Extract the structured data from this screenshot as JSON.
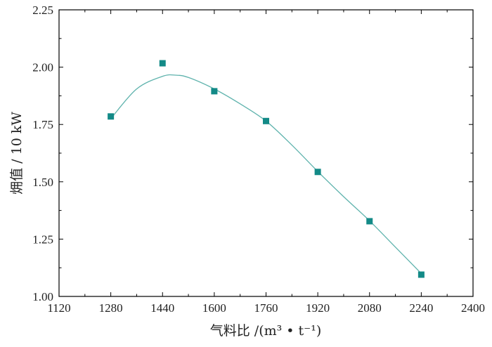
{
  "chart_data": {
    "type": "scatter",
    "xlabel": "气料比 /(m³ • t⁻¹)",
    "ylabel": "㶲值 / 10 kW",
    "xlim": [
      1120,
      2400
    ],
    "ylim": [
      1.0,
      2.25
    ],
    "xticks": [
      "1120",
      "1280",
      "1440",
      "1600",
      "1760",
      "1920",
      "2080",
      "2240",
      "2400"
    ],
    "yticks": [
      "1.00",
      "1.25",
      "1.50",
      "1.75",
      "2.00",
      "2.25"
    ],
    "grid": false,
    "series": [
      {
        "marker": "square",
        "color": "#138a87",
        "x": [
          1280,
          1440,
          1600,
          1760,
          1920,
          2080,
          2240
        ],
        "y": [
          1.785,
          2.017,
          1.895,
          1.765,
          1.543,
          1.328,
          1.095
        ]
      }
    ],
    "fit_curve": {
      "color": "#5fb3ad",
      "x": [
        1280,
        1360,
        1440,
        1480,
        1520,
        1600,
        1680,
        1760,
        1840,
        1920,
        2000,
        2080,
        2160,
        2240
      ],
      "y": [
        1.775,
        1.905,
        1.96,
        1.965,
        1.955,
        1.905,
        1.84,
        1.765,
        1.66,
        1.545,
        1.435,
        1.33,
        1.215,
        1.1
      ]
    }
  }
}
